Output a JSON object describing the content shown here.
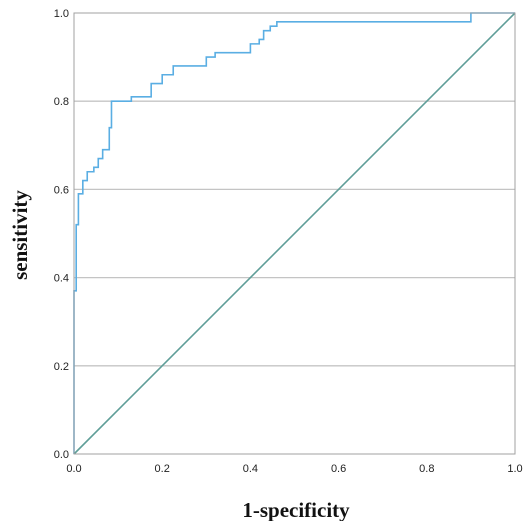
{
  "chart_data": {
    "type": "line",
    "title": "",
    "xlabel": "1-specificity",
    "ylabel": "sensitivity",
    "xlim": [
      0.0,
      1.0
    ],
    "ylim": [
      0.0,
      1.0
    ],
    "x_ticks": [
      "0.0",
      "0.2",
      "0.4",
      "0.6",
      "0.8",
      "1.0"
    ],
    "y_ticks": [
      "0.0",
      "0.2",
      "0.4",
      "0.6",
      "0.8",
      "1.0"
    ],
    "grid": "horizontal",
    "legend": "none",
    "series": [
      {
        "color": "#5aaee3",
        "points": [
          [
            0.0,
            0.0
          ],
          [
            0.0,
            0.37
          ],
          [
            0.005,
            0.37
          ],
          [
            0.005,
            0.52
          ],
          [
            0.01,
            0.52
          ],
          [
            0.01,
            0.59
          ],
          [
            0.02,
            0.59
          ],
          [
            0.02,
            0.62
          ],
          [
            0.03,
            0.62
          ],
          [
            0.03,
            0.64
          ],
          [
            0.045,
            0.64
          ],
          [
            0.045,
            0.65
          ],
          [
            0.055,
            0.65
          ],
          [
            0.055,
            0.67
          ],
          [
            0.065,
            0.67
          ],
          [
            0.065,
            0.69
          ],
          [
            0.08,
            0.69
          ],
          [
            0.08,
            0.74
          ],
          [
            0.085,
            0.74
          ],
          [
            0.085,
            0.8
          ],
          [
            0.13,
            0.8
          ],
          [
            0.13,
            0.81
          ],
          [
            0.175,
            0.81
          ],
          [
            0.175,
            0.84
          ],
          [
            0.2,
            0.84
          ],
          [
            0.2,
            0.86
          ],
          [
            0.225,
            0.86
          ],
          [
            0.225,
            0.88
          ],
          [
            0.3,
            0.88
          ],
          [
            0.3,
            0.9
          ],
          [
            0.32,
            0.9
          ],
          [
            0.32,
            0.91
          ],
          [
            0.4,
            0.91
          ],
          [
            0.4,
            0.93
          ],
          [
            0.42,
            0.93
          ],
          [
            0.42,
            0.94
          ],
          [
            0.43,
            0.94
          ],
          [
            0.43,
            0.96
          ],
          [
            0.445,
            0.96
          ],
          [
            0.445,
            0.97
          ],
          [
            0.46,
            0.97
          ],
          [
            0.46,
            0.98
          ],
          [
            0.9,
            0.98
          ],
          [
            0.9,
            1.0
          ],
          [
            1.0,
            1.0
          ]
        ]
      },
      {
        "color": "#5f9e98",
        "points": [
          [
            0.0,
            0.0
          ],
          [
            1.0,
            1.0
          ]
        ]
      }
    ]
  },
  "colors": {
    "frame": "#a0a0a0",
    "grid": "#c4c4c4"
  }
}
